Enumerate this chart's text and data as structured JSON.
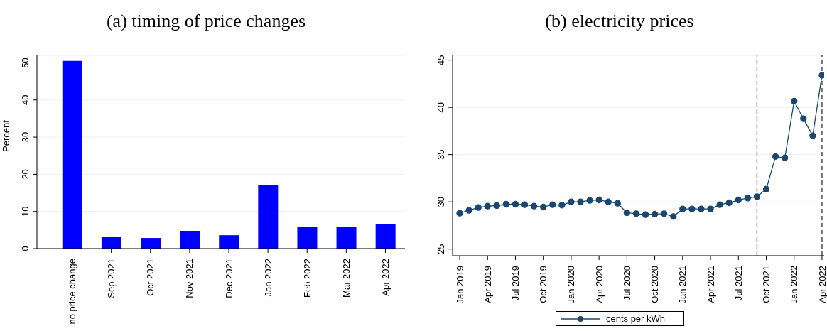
{
  "chart_data": [
    {
      "type": "bar",
      "title": "(a) timing of price changes",
      "ylabel": "Percent",
      "categories": [
        "no price change",
        "Sep 2021",
        "Oct 2021",
        "Nov 2021",
        "Dec 2021",
        "Jan 2022",
        "Feb 2022",
        "Mar 2022",
        "Apr 2022"
      ],
      "values": [
        50.5,
        3.2,
        2.85,
        4.8,
        3.6,
        17.2,
        5.9,
        5.9,
        6.5
      ],
      "color": "#0000ff",
      "ylim": [
        0,
        52
      ],
      "yticks": [
        0,
        10,
        20,
        30,
        40,
        50
      ],
      "grid": "y",
      "legend": false
    },
    {
      "type": "line",
      "title": "(b) electricity prices",
      "x": [
        "2019-01",
        "2019-02",
        "2019-03",
        "2019-04",
        "2019-05",
        "2019-06",
        "2019-07",
        "2019-08",
        "2019-09",
        "2019-10",
        "2019-11",
        "2019-12",
        "2020-01",
        "2020-02",
        "2020-03",
        "2020-04",
        "2020-05",
        "2020-06",
        "2020-07",
        "2020-08",
        "2020-09",
        "2020-10",
        "2020-11",
        "2020-12",
        "2021-01",
        "2021-02",
        "2021-03",
        "2021-04",
        "2021-05",
        "2021-06",
        "2021-07",
        "2021-08",
        "2021-09",
        "2021-10",
        "2021-11",
        "2021-12",
        "2022-01",
        "2022-02",
        "2022-03",
        "2022-04"
      ],
      "series": [
        {
          "name": "cents per kWh",
          "color": "#1a476f",
          "values": [
            28.8,
            29.1,
            29.4,
            29.55,
            29.6,
            29.75,
            29.75,
            29.7,
            29.55,
            29.45,
            29.7,
            29.65,
            30.0,
            30.0,
            30.15,
            30.2,
            30.0,
            29.85,
            28.85,
            28.75,
            28.65,
            28.7,
            28.75,
            28.45,
            29.25,
            29.25,
            29.25,
            29.25,
            29.7,
            29.9,
            30.2,
            30.4,
            30.55,
            31.35,
            34.8,
            34.65,
            40.65,
            38.8,
            37.0,
            43.4
          ]
        }
      ],
      "xlim": [
        "2018-12-08",
        "2022-04-08"
      ],
      "xticks": [
        {
          "value": "2019-01",
          "label": "Jan 2019"
        },
        {
          "value": "2019-04",
          "label": "Apr 2019"
        },
        {
          "value": "2019-07",
          "label": "Jul 2019"
        },
        {
          "value": "2019-10",
          "label": "Oct 2019"
        },
        {
          "value": "2020-01",
          "label": "Jan 2020"
        },
        {
          "value": "2020-04",
          "label": "Apr 2020"
        },
        {
          "value": "2020-07",
          "label": "Jul 2020"
        },
        {
          "value": "2020-10",
          "label": "Oct 2020"
        },
        {
          "value": "2021-01",
          "label": "Jan 2021"
        },
        {
          "value": "2021-04",
          "label": "Apr 2021"
        },
        {
          "value": "2021-07",
          "label": "Jul 2021"
        },
        {
          "value": "2021-10",
          "label": "Oct 2021"
        },
        {
          "value": "2022-01",
          "label": "Jan 2022"
        },
        {
          "value": "2022-04",
          "label": "Apr 2022"
        }
      ],
      "ylim": [
        24.3,
        45.5
      ],
      "yticks": [
        25,
        30,
        35,
        40,
        45
      ],
      "grid": "y",
      "legend": "bottom",
      "marker": "circle",
      "line_style": "solid",
      "ref_lines": [
        {
          "axis": "x",
          "value": "2021-09",
          "color": "#333333",
          "line_style": "dashed"
        },
        {
          "axis": "x",
          "value": "2022-04",
          "color": "#333333",
          "line_style": "dashed"
        }
      ]
    }
  ]
}
